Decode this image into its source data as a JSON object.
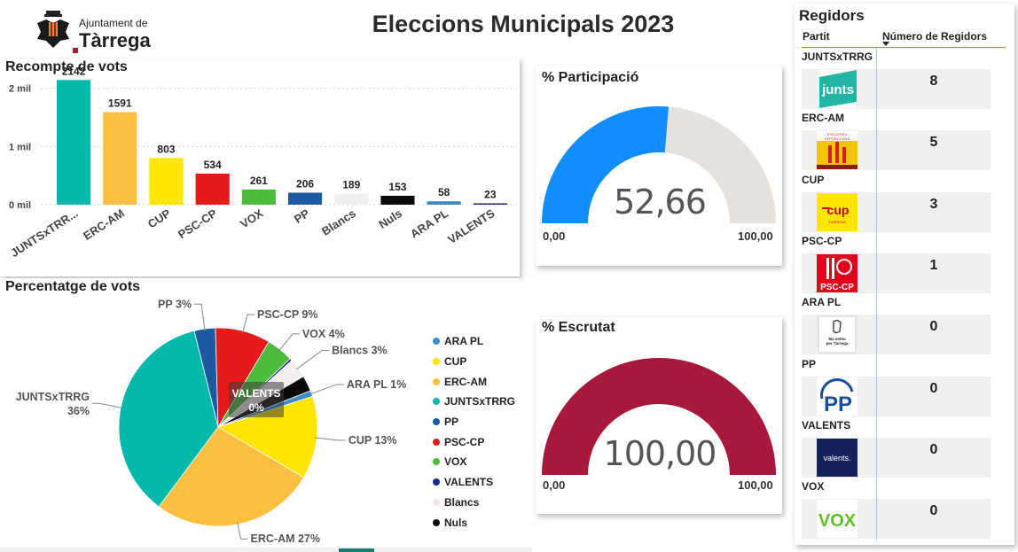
{
  "header": {
    "logo_line1": "Ajuntament de",
    "logo_line2": "Tàrrega",
    "title": "Eleccions Municipals 2023"
  },
  "vote_count": {
    "title": "Recompte de vots",
    "y_ticks": [
      "0 mil",
      "1 mil",
      "2 mil"
    ]
  },
  "vote_pct": {
    "title": "Percentatge de vots"
  },
  "participation": {
    "title": "% Participació",
    "value_label": "52,66",
    "value": 52.66,
    "min_label": "0,00",
    "max_label": "100,00",
    "fill_color": "#118dff",
    "track_color": "#e6e1dc"
  },
  "scrutiny": {
    "title": "% Escrutat",
    "value_label": "100,00",
    "value": 100,
    "min_label": "0,00",
    "max_label": "100,00",
    "fill_color": "#a8183a",
    "track_color": "#e6e1dc"
  },
  "chart_data": [
    {
      "type": "bar",
      "title": "Recompte de vots",
      "categories": [
        "JUNTSxTRR...",
        "ERC-AM",
        "CUP",
        "PSC-CP",
        "VOX",
        "PP",
        "Blancs",
        "Nuls",
        "ARA PL",
        "VALENTS"
      ],
      "values": [
        2142,
        1591,
        803,
        534,
        261,
        206,
        189,
        153,
        58,
        23
      ],
      "value_labels": [
        "2142",
        "1591",
        "803",
        "534",
        "261",
        "206",
        "189",
        "153",
        "58",
        "23"
      ],
      "colors": [
        "#01b8aa",
        "#fdbf40",
        "#fee600",
        "#e51a1a",
        "#4dbb3c",
        "#1b5aa0",
        "#f0f0f0",
        "#0a0a0a",
        "#3b8cc6",
        "#1a2a8a"
      ],
      "ylim": [
        0,
        2300
      ],
      "grid": true
    },
    {
      "type": "pie",
      "title": "Percentatge de vots",
      "legend": "right",
      "slices": [
        {
          "name": "PP",
          "value": 206,
          "label": "PP 3%",
          "color": "#1b5aa0"
        },
        {
          "name": "PSC-CP",
          "value": 534,
          "label": "PSC-CP 9%",
          "color": "#e51a1a"
        },
        {
          "name": "VOX",
          "value": 261,
          "label": "VOX 4%",
          "color": "#4dbb3c"
        },
        {
          "name": "VALENTS",
          "value": 23,
          "label": "VALENTS 0%",
          "color": "#1a2a8a"
        },
        {
          "name": "Blancs",
          "value": 189,
          "label": "Blancs 3%",
          "color": "#f5eef0"
        },
        {
          "name": "Nuls",
          "value": 153,
          "label": "",
          "color": "#0a0a0a"
        },
        {
          "name": "ARA PL",
          "value": 58,
          "label": "ARA PL 1%",
          "color": "#3b8cc6"
        },
        {
          "name": "CUP",
          "value": 803,
          "label": "CUP 13%",
          "color": "#fee600"
        },
        {
          "name": "ERC-AM",
          "value": 1591,
          "label": "ERC-AM 27%",
          "color": "#fdbf40"
        },
        {
          "name": "JUNTSxTRRG",
          "value": 2142,
          "label": "JUNTSxTRRG\n36%",
          "color": "#01b8aa"
        }
      ],
      "legend_items": [
        {
          "name": "ARA PL",
          "color": "#3b8cc6"
        },
        {
          "name": "CUP",
          "color": "#fee600"
        },
        {
          "name": "ERC-AM",
          "color": "#fdbf40"
        },
        {
          "name": "JUNTSxTRRG",
          "color": "#01b8aa"
        },
        {
          "name": "PP",
          "color": "#1b5aa0"
        },
        {
          "name": "PSC-CP",
          "color": "#e51a1a"
        },
        {
          "name": "VOX",
          "color": "#4dbb3c"
        },
        {
          "name": "VALENTS",
          "color": "#1a2a8a"
        },
        {
          "name": "Blancs",
          "color": "#f5eef0"
        },
        {
          "name": "Nuls",
          "color": "#0a0a0a"
        }
      ]
    }
  ],
  "regidors": {
    "title": "Regidors",
    "col_party": "Partit",
    "col_count": "Número de Regidors",
    "rows": [
      {
        "party": "JUNTSxTRRG",
        "count": "8",
        "logo": "junts-logo",
        "logo_text": "junts"
      },
      {
        "party": "ERC-AM",
        "count": "5",
        "logo": "erc-logo",
        "logo_text": "ESQUERRA REPUBLICANA"
      },
      {
        "party": "CUP",
        "count": "3",
        "logo": "cup-logo",
        "logo_text": "cup"
      },
      {
        "party": "PSC-CP",
        "count": "1",
        "logo": "psc-logo",
        "logo_text": "PSC-CP"
      },
      {
        "party": "ARA PL",
        "count": "0",
        "logo": "ara-pl-logo",
        "logo_text": "Ma esteu per Tàrrega"
      },
      {
        "party": "PP",
        "count": "0",
        "logo": "pp-logo",
        "logo_text": "PP"
      },
      {
        "party": "VALENTS",
        "count": "0",
        "logo": "valents-logo",
        "logo_text": "valents."
      },
      {
        "party": "VOX",
        "count": "0",
        "logo": "vox-logo",
        "logo_text": "VOX"
      }
    ]
  }
}
